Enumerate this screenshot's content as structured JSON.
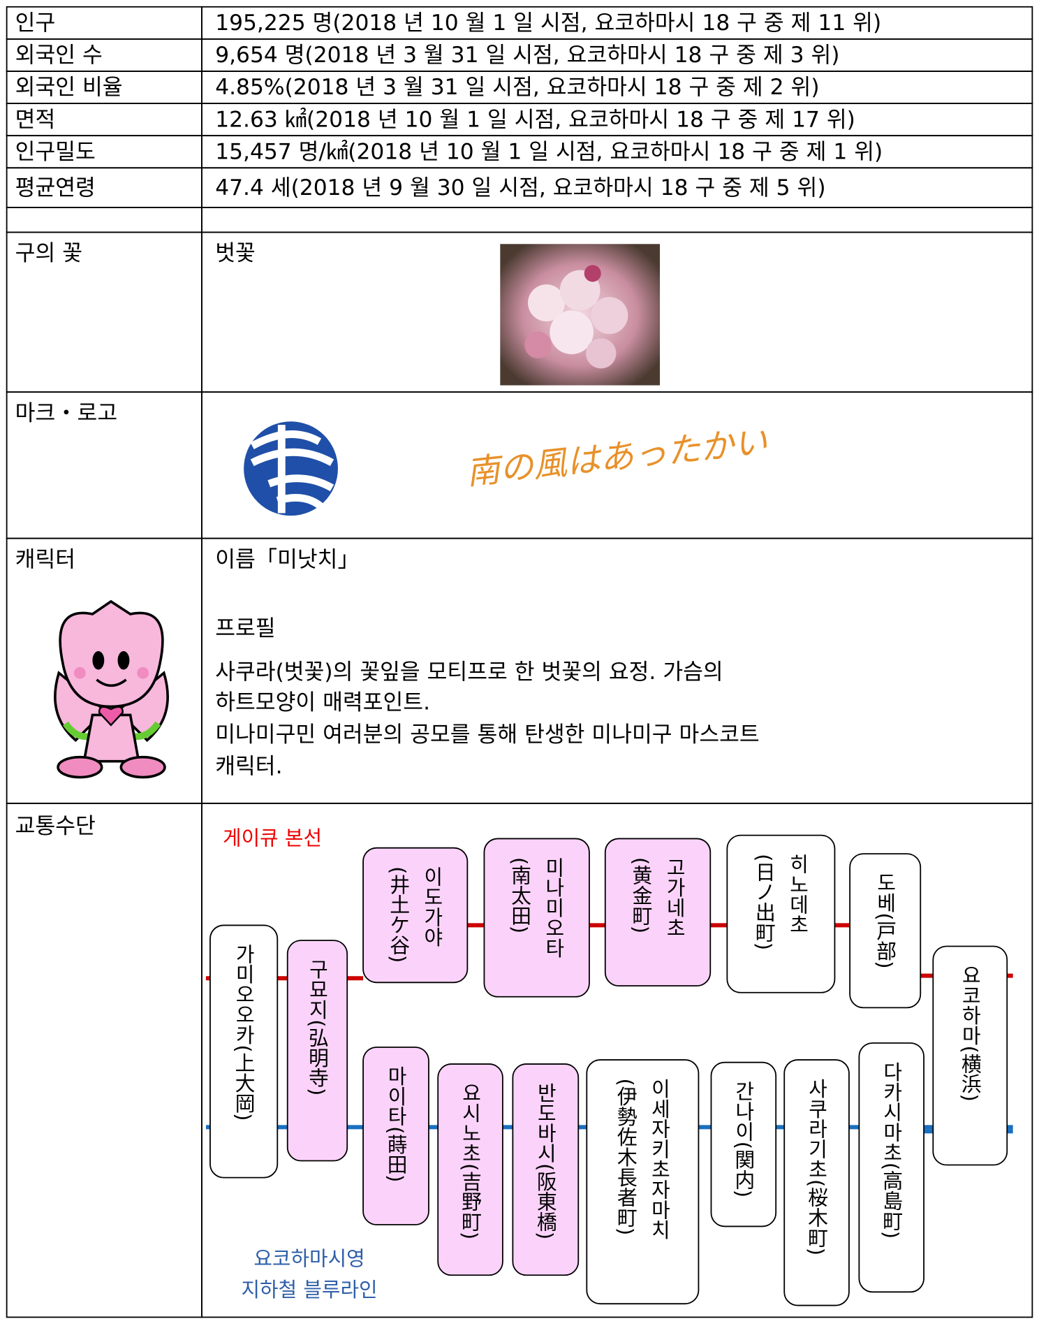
{
  "table": {
    "rows": [
      {
        "label": "인구",
        "value": "195,225 명(2018 년 10 월 1 일 시점, 요코하마시 18 구 중 제 11 위)"
      },
      {
        "label": "외국인 수",
        "value": "9,654 명(2018 년 3 월 31 일 시점, 요코하마시 18 구 중 제 3 위)"
      },
      {
        "label": "외국인 비율",
        "value": "4.85%(2018 년 3 월 31 일 시점, 요코하마시 18 구 중 제 2 위)"
      },
      {
        "label": "면적",
        "value": "12.63 ㎢(2018 년 10 월 1 일 시점, 요코하마시 18 구 중 제 17 위)"
      },
      {
        "label": "인구밀도",
        "value": "15,457 명/㎢(2018 년 10 월 1 일 시점, 요코하마시 18 구 중 제 1 위)"
      },
      {
        "label": "평균연령",
        "value": "47.4 세(2018 년 9 월 30 일 시점, 요코하마시 18 구 중 제 5 위)"
      }
    ],
    "flower": {
      "label": "구의 꽃",
      "value": "벗꽃"
    },
    "logo": {
      "label": "마크・로고",
      "slogan": "南の風はあったかい"
    },
    "character": {
      "label": "캐릭터",
      "lines": [
        "이름「미낫치」",
        "프로필",
        "사쿠라(벗꽃)의 꽃잎을 모티프로 한 벗꽃의 요정. 가슴의",
        "하트모양이 매력포인트.",
        "미나미구민 여러분의 공모를 통해 탄생한 미나미구 마스코트",
        "캐릭터."
      ]
    },
    "transit": {
      "label": "교통수단",
      "keikyu_label": "게이큐 본선",
      "subway_label": [
        "요코하마시영",
        "지하철 블루라인"
      ],
      "stations": [
        {
          "name": "가미오오카",
          "kanji": "(上大岡)"
        },
        {
          "name": "구묘지",
          "kanji": "(弘明寺)"
        },
        {
          "name": "이도가야",
          "kanji": "(井土ケ谷)"
        },
        {
          "name": "미나미오타",
          "kanji": "(南太田)"
        },
        {
          "name": "고가네초",
          "kanji": "(黄金町)"
        },
        {
          "name": "히노데초",
          "kanji": "(日ノ出町)"
        },
        {
          "name": "도베",
          "kanji": "(戸部)"
        },
        {
          "name": "요코하마",
          "kanji": "(横浜)"
        },
        {
          "name": "마이타",
          "kanji": "(蒔田)"
        },
        {
          "name": "요시노초",
          "kanji": "(吉野町)"
        },
        {
          "name": "반도바시",
          "kanji": "(阪東橋)"
        },
        {
          "name": "이세자키초자마치",
          "kanji": "(伊勢佐木長者町)"
        },
        {
          "name": "간나이",
          "kanji": "(関内)"
        },
        {
          "name": "사쿠라기초",
          "kanji": "(桜木町)"
        },
        {
          "name": "다카시마초",
          "kanji": "(高島町)"
        }
      ]
    }
  }
}
